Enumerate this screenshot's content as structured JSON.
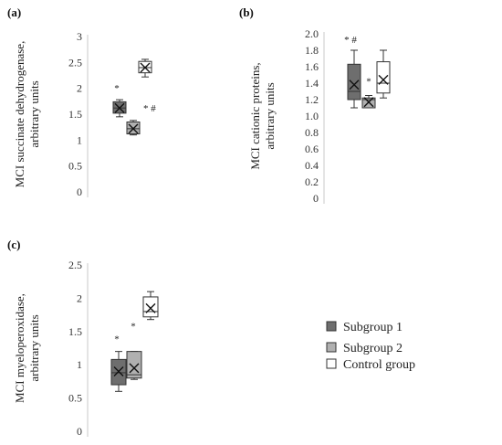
{
  "colors": {
    "subgroup1": "#6e6e6e",
    "subgroup2": "#b0b0b0",
    "control": "#ffffff",
    "stroke": "#333333",
    "axis": "#c8c8c8"
  },
  "legend": [
    {
      "key": "subgroup1",
      "label": "Subgroup 1"
    },
    {
      "key": "subgroup2",
      "label": "Subgroup 2"
    },
    {
      "key": "control",
      "label": "Control group"
    }
  ],
  "chart_data": [
    {
      "panel": "(a)",
      "type": "box",
      "ylabel_lines": [
        "MCI succinate dehydrogenase,",
        "arbitrary units"
      ],
      "ylim": [
        0,
        3
      ],
      "yticks": [
        "0",
        "0.5",
        "1",
        "1.5",
        "2",
        "2.5",
        "3"
      ],
      "ytick_values": [
        0,
        0.5,
        1,
        1.5,
        2,
        2.5,
        3
      ],
      "series": [
        {
          "group": "subgroup1",
          "min": 1.45,
          "q1": 1.52,
          "median": 1.62,
          "q3": 1.74,
          "max": 1.78,
          "mean": 1.62,
          "annotation": "*"
        },
        {
          "group": "subgroup2",
          "min": 1.1,
          "q1": 1.12,
          "median": 1.22,
          "q3": 1.35,
          "max": 1.38,
          "mean": 1.22,
          "annotation": "* #"
        },
        {
          "group": "control",
          "min": 2.22,
          "q1": 2.3,
          "median": 2.4,
          "q3": 2.52,
          "max": 2.56,
          "mean": 2.4,
          "annotation": ""
        }
      ]
    },
    {
      "panel": "(b)",
      "type": "box",
      "ylabel_lines": [
        "MCI cationic proteins,",
        "arbitrary units"
      ],
      "ylim": [
        0,
        2
      ],
      "yticks": [
        "0",
        "0.2",
        "0.4",
        "0.6",
        "0.8",
        "1.0",
        "1.2",
        "1.4",
        "1.6",
        "1.8",
        "2.0"
      ],
      "ytick_values": [
        0,
        0.2,
        0.4,
        0.6,
        0.8,
        1.0,
        1.2,
        1.4,
        1.6,
        1.8,
        2.0
      ],
      "series": [
        {
          "group": "subgroup1",
          "min": 1.1,
          "q1": 1.2,
          "median": 1.3,
          "q3": 1.63,
          "max": 1.8,
          "mean": 1.38,
          "annotation": "* #"
        },
        {
          "group": "subgroup2",
          "min": 1.1,
          "q1": 1.1,
          "median": 1.2,
          "q3": 1.22,
          "max": 1.25,
          "mean": 1.17,
          "annotation": "*"
        },
        {
          "group": "control",
          "min": 1.22,
          "q1": 1.28,
          "median": 1.4,
          "q3": 1.66,
          "max": 1.8,
          "mean": 1.44,
          "annotation": ""
        }
      ]
    },
    {
      "panel": "(c)",
      "type": "box",
      "ylabel_lines": [
        "MCI myeloperoxidase,",
        "arbitrary units"
      ],
      "ylim": [
        0,
        2.5
      ],
      "yticks": [
        "0",
        "0.5",
        "1",
        "1.5",
        "2",
        "2.5"
      ],
      "ytick_values": [
        0,
        0.5,
        1,
        1.5,
        2,
        2.5
      ],
      "series": [
        {
          "group": "subgroup1",
          "min": 0.6,
          "q1": 0.7,
          "median": 0.88,
          "q3": 1.08,
          "max": 1.2,
          "mean": 0.9,
          "annotation": "*"
        },
        {
          "group": "subgroup2",
          "min": 0.78,
          "q1": 0.8,
          "median": 0.85,
          "q3": 1.2,
          "max": 1.2,
          "mean": 0.95,
          "annotation": "*"
        },
        {
          "group": "control",
          "min": 1.68,
          "q1": 1.72,
          "median": 1.8,
          "q3": 2.02,
          "max": 2.1,
          "mean": 1.85,
          "annotation": ""
        }
      ]
    }
  ]
}
